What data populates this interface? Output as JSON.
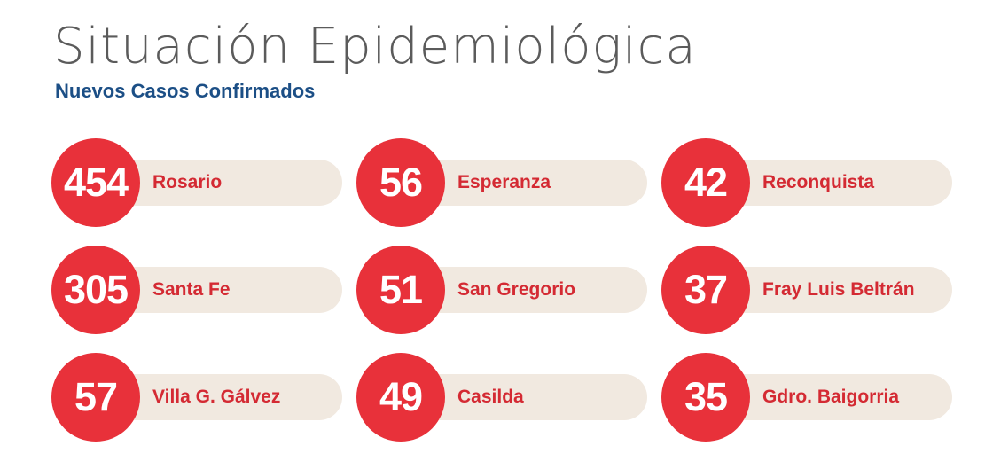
{
  "header": {
    "title": "Situación Epidemiológica",
    "subtitle": "Nuevos Casos Confirmados"
  },
  "colors": {
    "accent_red": "#e8313a",
    "label_red": "#d42a33",
    "pill_beige": "#f1e9e0",
    "subtitle_blue": "#1c4f86",
    "title_gray": "#5b5b5b"
  },
  "cases": [
    {
      "count": "454",
      "city": "Rosario"
    },
    {
      "count": "56",
      "city": "Esperanza"
    },
    {
      "count": "42",
      "city": "Reconquista"
    },
    {
      "count": "305",
      "city": "Santa Fe"
    },
    {
      "count": "51",
      "city": "San Gregorio"
    },
    {
      "count": "37",
      "city": "Fray Luis Beltrán"
    },
    {
      "count": "57",
      "city": "Villa G. Gálvez"
    },
    {
      "count": "49",
      "city": "Casilda"
    },
    {
      "count": "35",
      "city": "Gdro. Baigorria"
    }
  ]
}
